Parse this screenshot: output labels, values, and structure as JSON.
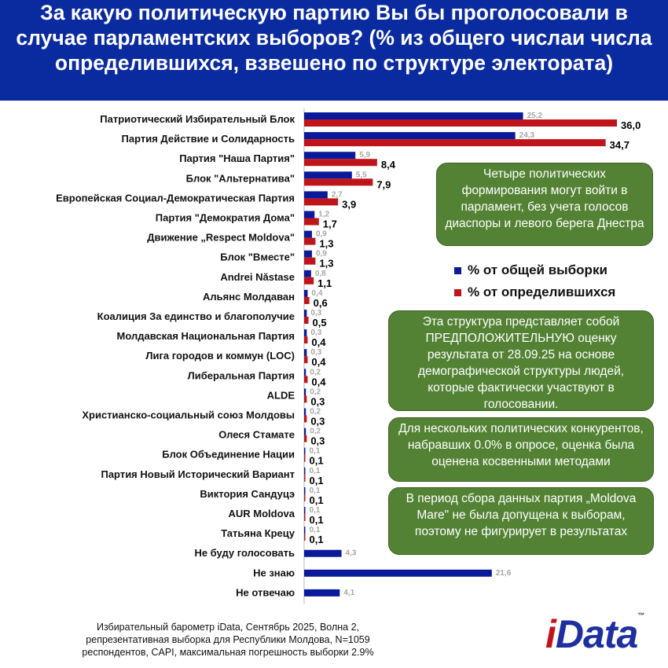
{
  "chart_data": {
    "type": "bar",
    "orientation": "horizontal",
    "title": "За какую политическую партию Вы бы проголосовали в случае парламентских выборов? (% из общего числаи числа определившихся, взвешено по структуре электората)",
    "categories": [
      "Патриотический Избирательный Блок",
      "Партия Действие и Солидарность",
      "Партия \"Наша Партия\"",
      "Блок \"Альтернатива\"",
      "Европейская Социал-Демократическая Партия",
      "Партия \"Демократия Дома\"",
      "Движение „Respect Moldova\"",
      "Блок \"Вместе\"",
      "Andrei Năstase",
      "Альянс Молдаван",
      "Коалиция За единство и благополучие",
      "Молдавская Национальная Партия",
      "Лига городов и коммун (LOC)",
      "Либеральная Партия",
      "ALDE",
      "Христианско-социальный союз Молдовы",
      "Олеся Стамате",
      "Блок Объединение Нации",
      "Партия Новый Исторический Вариант",
      "Виктория Сандуцэ",
      "AUR Moldova",
      "Татьяна Крецу",
      "Не буду голосовать",
      "Не знаю",
      "Не отвечаю"
    ],
    "series": [
      {
        "name": "% от общей выборки",
        "color": "#0a1a9a",
        "values": [
          25.2,
          24.3,
          5.9,
          5.5,
          2.7,
          1.2,
          0.9,
          0.9,
          0.8,
          0.4,
          0.3,
          0.3,
          0.3,
          0.2,
          0.2,
          0.2,
          0.2,
          0.1,
          0.1,
          0.1,
          0.1,
          0.1,
          4.3,
          21.6,
          4.1
        ],
        "labels": [
          "25,2",
          "24,3",
          "5,9",
          "5,5",
          "2,7",
          "1,2",
          "0,9",
          "0,9",
          "0,8",
          "0,4",
          "0,3",
          "0,3",
          "0,3",
          "0,2",
          "0,2",
          "0,2",
          "0,2",
          "0,1",
          "0,1",
          "0,1",
          "0,1",
          "0,1",
          "4,3",
          "21,6",
          "4,1"
        ]
      },
      {
        "name": "% от определившихся",
        "color": "#c0141b",
        "values": [
          36.0,
          34.7,
          8.4,
          7.9,
          3.9,
          1.7,
          1.3,
          1.3,
          1.1,
          0.6,
          0.5,
          0.4,
          0.4,
          0.4,
          0.3,
          0.3,
          0.3,
          0.1,
          0.1,
          0.1,
          0.1,
          0.1,
          null,
          null,
          null
        ],
        "labels": [
          "36,0",
          "34,7",
          "8,4",
          "7,9",
          "3,9",
          "1,7",
          "1,3",
          "1,3",
          "1,1",
          "0,6",
          "0,5",
          "0,4",
          "0,4",
          "0,4",
          "0,3",
          "0,3",
          "0,3",
          "0,1",
          "0,1",
          "0,1",
          "0,1",
          "0,1",
          "",
          "",
          ""
        ]
      }
    ],
    "xlim": [
      0,
      40
    ],
    "legend_position": "right"
  },
  "notes": [
    "Четыре политических формирования могут войти в парламент, без учета голосов диаспоры и левого берега Днестра",
    "Эта структура представляет собой ПРЕДПОЛОЖИТЕЛЬНУЮ оценку результата от 28.09.25 на основе демографической структуры людей, которые фактически участвуют в голосовании.",
    "Для нескольких политических конкурентов, набравших 0.0% в опросе, оценка была оценена косвенными методами",
    "В период сбора данных партия „Moldova Mare\" не была допущена к выборам, поэтому не фигурирует в результатах"
  ],
  "footer": "Избирательный барометр iData, Сентябрь 2025, Волна 2, репрезентативная выборка для Республики Молдова, N=1059 респондентов, CAPI, максимальная погрешность выборки 2.9%",
  "logo": {
    "first": "i",
    "rest": "Data",
    "tm": "™"
  }
}
